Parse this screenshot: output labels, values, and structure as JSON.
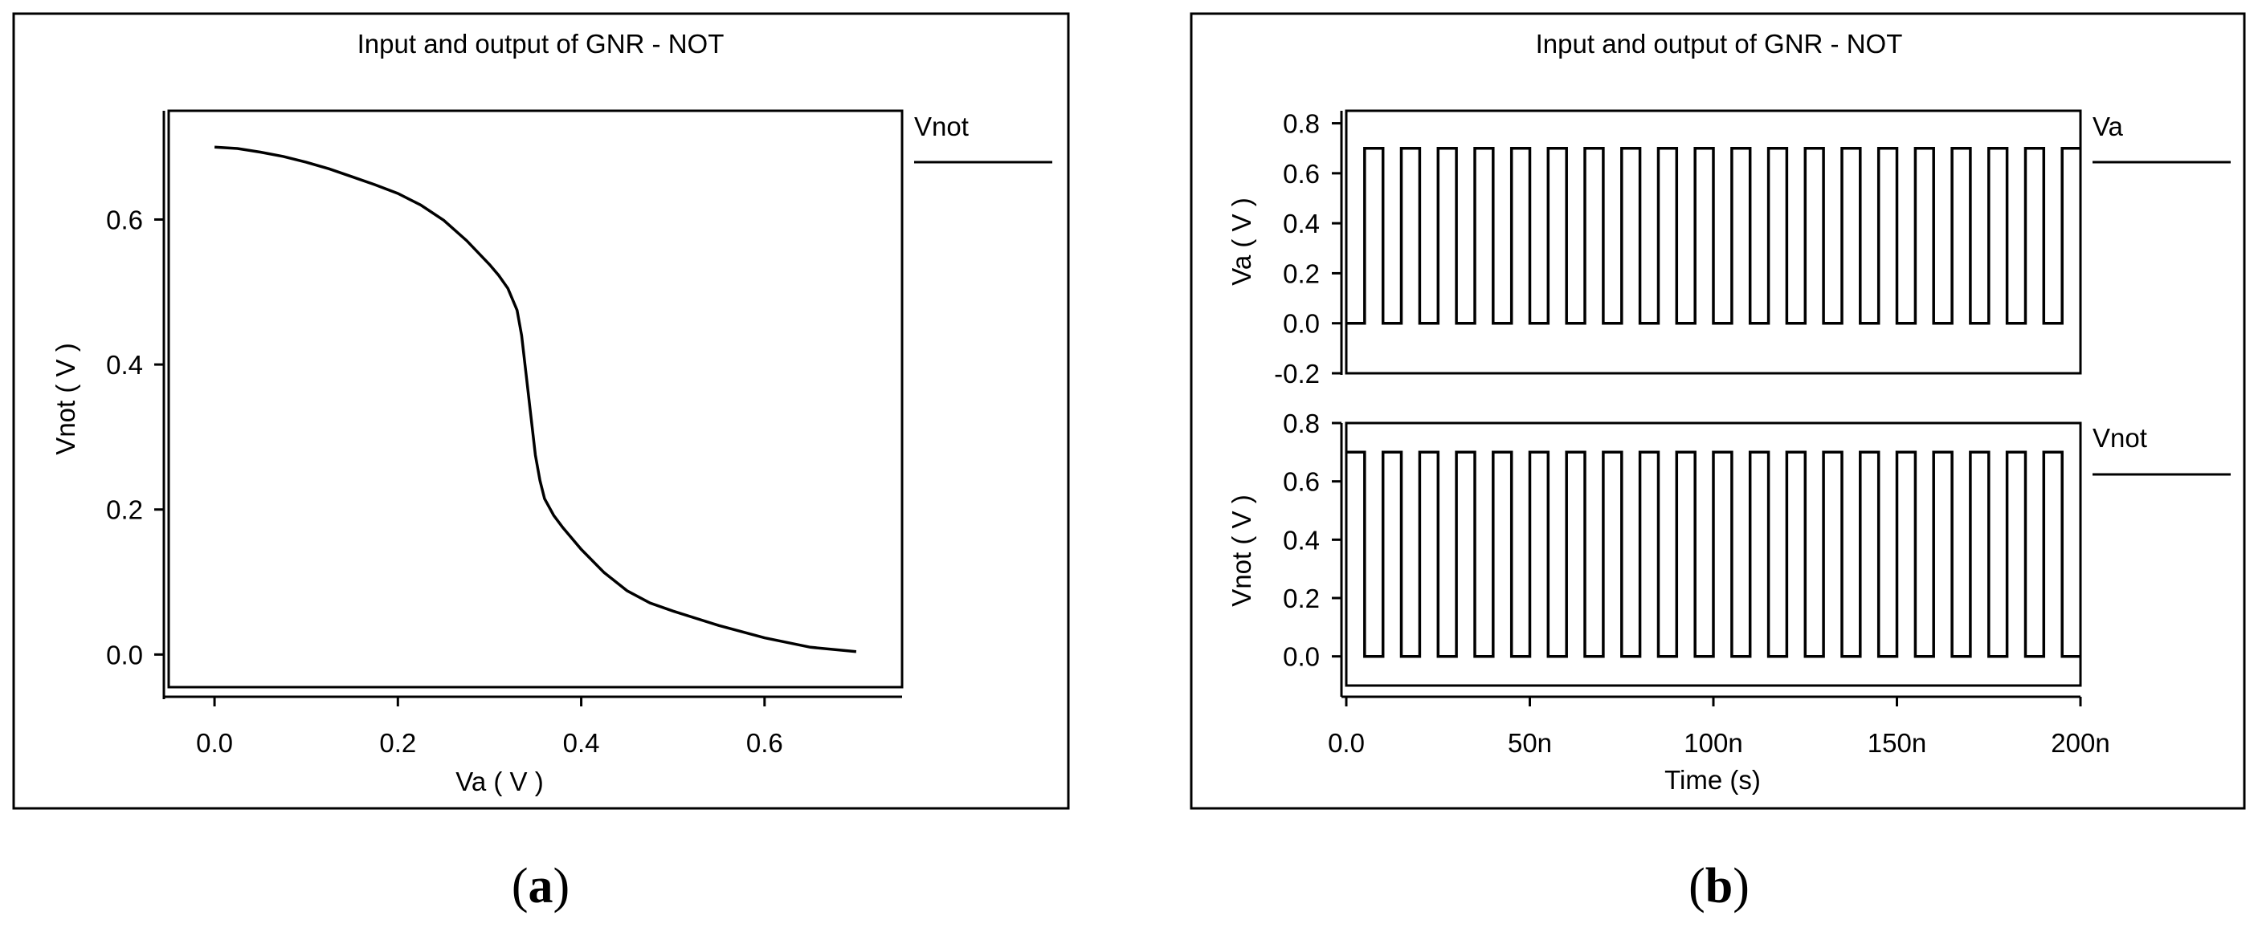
{
  "figure": {
    "panel_a_label_open": "(",
    "panel_a_label_letter": "a",
    "panel_a_label_close": ")",
    "panel_b_label_open": "(",
    "panel_b_label_letter": "b",
    "panel_b_label_close": ")",
    "line_color": "#000000",
    "background": "#ffffff"
  },
  "chart_data": [
    {
      "id": "panel-a",
      "type": "line",
      "title": "Input and output of GNR - NOT",
      "xlabel": "Va ( V )",
      "ylabel": "Vnot ( V )",
      "xlim": [
        -0.05,
        0.75
      ],
      "ylim": [
        -0.045,
        0.75
      ],
      "xticks": [
        0.0,
        0.2,
        0.4,
        0.6
      ],
      "xtick_labels": [
        "0.0",
        "0.2",
        "0.4",
        "0.6"
      ],
      "yticks": [
        0.0,
        0.2,
        0.4,
        0.6
      ],
      "ytick_labels": [
        "0.0",
        "0.2",
        "0.4",
        "0.6"
      ],
      "grid": false,
      "legend": "right",
      "series": [
        {
          "name": "Vnot",
          "x": [
            0.0,
            0.025,
            0.05,
            0.075,
            0.1,
            0.125,
            0.15,
            0.175,
            0.2,
            0.225,
            0.25,
            0.275,
            0.3,
            0.31,
            0.32,
            0.33,
            0.335,
            0.34,
            0.345,
            0.35,
            0.355,
            0.36,
            0.37,
            0.38,
            0.4,
            0.425,
            0.45,
            0.475,
            0.5,
            0.55,
            0.6,
            0.65,
            0.7
          ],
          "y": [
            0.7,
            0.698,
            0.693,
            0.687,
            0.679,
            0.67,
            0.659,
            0.648,
            0.636,
            0.62,
            0.599,
            0.571,
            0.538,
            0.523,
            0.505,
            0.475,
            0.44,
            0.385,
            0.33,
            0.275,
            0.24,
            0.215,
            0.192,
            0.175,
            0.145,
            0.113,
            0.088,
            0.071,
            0.06,
            0.04,
            0.023,
            0.01,
            0.004
          ]
        }
      ]
    },
    {
      "id": "panel-b-va",
      "type": "line",
      "title": "Input and output of GNR - NOT",
      "xlabel": "",
      "ylabel": "Va ( V )",
      "xlim": [
        0,
        2e-07
      ],
      "ylim": [
        -0.2,
        0.85
      ],
      "yticks": [
        -0.2,
        0.0,
        0.2,
        0.4,
        0.6,
        0.8
      ],
      "ytick_labels": [
        "-0.2",
        "0.0",
        "0.2",
        "0.4",
        "0.6",
        "0.8"
      ],
      "grid": false,
      "legend": "right",
      "series": [
        {
          "name": "Va",
          "waveform": "square",
          "low": 0.0,
          "high": 0.7,
          "period": 1e-08,
          "duty": 0.5,
          "starts_high": false,
          "x_start": 0,
          "x_end": 2e-07
        }
      ]
    },
    {
      "id": "panel-b-vnot",
      "type": "line",
      "xlabel": "Time (s)",
      "ylabel": "Vnot ( V )",
      "xlim": [
        0,
        2e-07
      ],
      "ylim": [
        -0.1,
        0.8
      ],
      "xticks": [
        0,
        5e-08,
        1e-07,
        1.5e-07,
        2e-07
      ],
      "xtick_labels": [
        "0.0",
        "50n",
        "100n",
        "150n",
        "200n"
      ],
      "yticks": [
        0.0,
        0.2,
        0.4,
        0.6,
        0.8
      ],
      "ytick_labels": [
        "0.0",
        "0.2",
        "0.4",
        "0.6",
        "0.8"
      ],
      "grid": false,
      "legend": "right",
      "series": [
        {
          "name": "Vnot",
          "waveform": "square",
          "low": 0.0,
          "high": 0.7,
          "period": 1e-08,
          "duty": 0.5,
          "starts_high": true,
          "x_start": 0,
          "x_end": 2e-07
        }
      ]
    }
  ]
}
